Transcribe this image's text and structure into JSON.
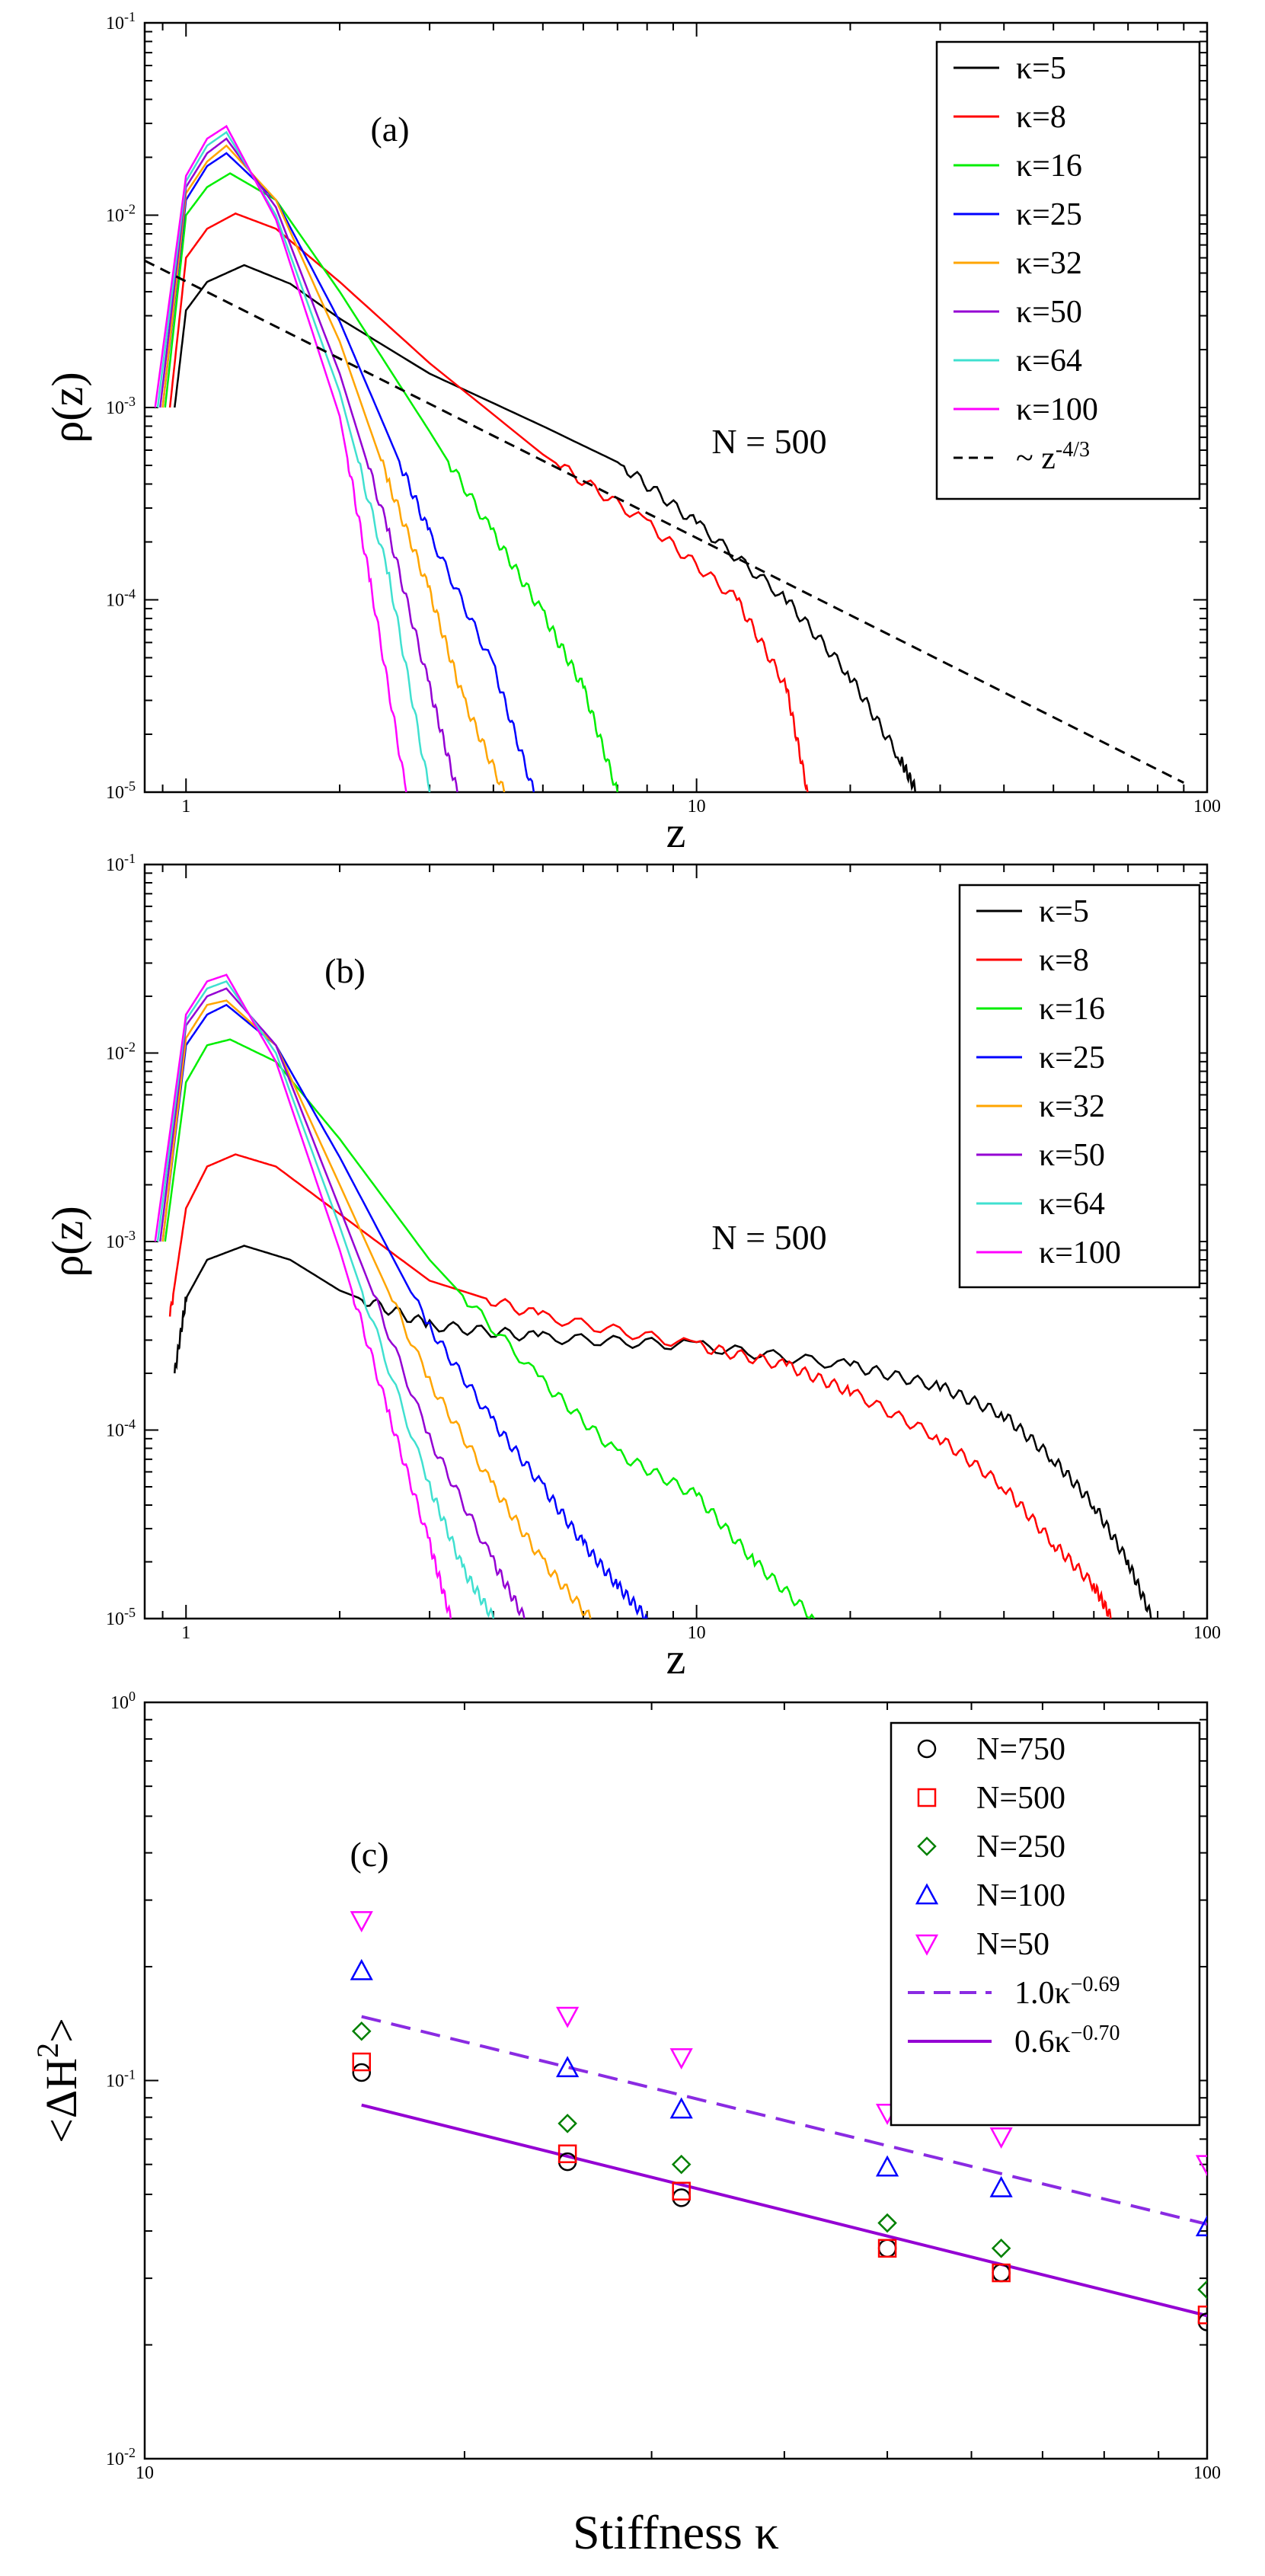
{
  "chart_data": [
    {
      "type": "line",
      "panel": "(a)",
      "xscale": "log",
      "yscale": "log",
      "xlim": [
        0.83,
        100
      ],
      "ylim": [
        1e-05,
        0.1
      ],
      "xlabel": "z",
      "ylabel": "ρ(z)",
      "annotation": "N = 500",
      "xticks": [
        "1",
        "10",
        "100"
      ],
      "yticks": [
        {
          "b": "10",
          "e": "-5"
        },
        {
          "b": "10",
          "e": "-4"
        },
        {
          "b": "10",
          "e": "-3"
        },
        {
          "b": "10",
          "e": "-2"
        },
        {
          "b": "10",
          "e": "-1"
        }
      ],
      "legend_position": "top-right",
      "series": [
        {
          "name": "κ=5",
          "color": "#000000",
          "points": [
            [
              0.95,
              0.001
            ],
            [
              1.0,
              0.0032
            ],
            [
              1.1,
              0.0045
            ],
            [
              1.3,
              0.0055
            ],
            [
              1.6,
              0.0044
            ],
            [
              2,
              0.0029
            ],
            [
              3,
              0.0015
            ],
            [
              5,
              0.0008
            ],
            [
              7,
              0.00052
            ],
            [
              10,
              0.00025
            ],
            [
              15,
              0.0001
            ],
            [
              20,
              4e-05
            ],
            [
              25,
              1.5e-05
            ],
            [
              27,
              1e-05
            ]
          ]
        },
        {
          "name": "κ=8",
          "color": "#ff0000",
          "points": [
            [
              0.93,
              0.001
            ],
            [
              1.0,
              0.006
            ],
            [
              1.1,
              0.0085
            ],
            [
              1.25,
              0.0102
            ],
            [
              1.5,
              0.0085
            ],
            [
              2,
              0.0045
            ],
            [
              3,
              0.0017
            ],
            [
              5,
              0.00057
            ],
            [
              8,
              0.00025
            ],
            [
              12,
              0.0001
            ],
            [
              15,
              3.5e-05
            ],
            [
              16.5,
              1e-05
            ]
          ]
        },
        {
          "name": "κ=16",
          "color": "#00ee00",
          "points": [
            [
              0.91,
              0.001
            ],
            [
              1.0,
              0.01
            ],
            [
              1.1,
              0.014
            ],
            [
              1.22,
              0.0165
            ],
            [
              1.5,
              0.012
            ],
            [
              2,
              0.004
            ],
            [
              3,
              0.00075
            ],
            [
              4,
              0.00022
            ],
            [
              5,
              8.5e-05
            ],
            [
              6,
              3.5e-05
            ],
            [
              7,
              1e-05
            ]
          ]
        },
        {
          "name": "κ=25",
          "color": "#0000ff",
          "points": [
            [
              0.9,
              0.001
            ],
            [
              1.0,
              0.012
            ],
            [
              1.1,
              0.018
            ],
            [
              1.2,
              0.021
            ],
            [
              1.5,
              0.012
            ],
            [
              2,
              0.0028
            ],
            [
              2.5,
              0.0007
            ],
            [
              3,
              0.00022
            ],
            [
              4,
              4.5e-05
            ],
            [
              4.8,
              1e-05
            ]
          ]
        },
        {
          "name": "κ=32",
          "color": "#ffa500",
          "points": [
            [
              0.9,
              0.001
            ],
            [
              1.0,
              0.013
            ],
            [
              1.1,
              0.019
            ],
            [
              1.2,
              0.023
            ],
            [
              1.5,
              0.012
            ],
            [
              2,
              0.0022
            ],
            [
              2.5,
              0.0004
            ],
            [
              3,
              0.00011
            ],
            [
              3.5,
              3e-05
            ],
            [
              4.2,
              1e-05
            ]
          ]
        },
        {
          "name": "κ=50",
          "color": "#9400d3",
          "points": [
            [
              0.89,
              0.001
            ],
            [
              1.0,
              0.014
            ],
            [
              1.1,
              0.021
            ],
            [
              1.2,
              0.025
            ],
            [
              1.5,
              0.011
            ],
            [
              2,
              0.0015
            ],
            [
              2.5,
              0.00022
            ],
            [
              3,
              3.5e-05
            ],
            [
              3.4,
              1e-05
            ]
          ]
        },
        {
          "name": "κ=64",
          "color": "#40e0d0",
          "points": [
            [
              0.88,
              0.001
            ],
            [
              1.0,
              0.015
            ],
            [
              1.1,
              0.023
            ],
            [
              1.2,
              0.027
            ],
            [
              1.5,
              0.01
            ],
            [
              2,
              0.0012
            ],
            [
              2.5,
              0.00013
            ],
            [
              3,
              1e-05
            ]
          ]
        },
        {
          "name": "κ=100",
          "color": "#ff00ff",
          "points": [
            [
              0.87,
              0.001
            ],
            [
              1.0,
              0.016
            ],
            [
              1.1,
              0.025
            ],
            [
              1.2,
              0.029
            ],
            [
              1.5,
              0.0095
            ],
            [
              2,
              0.0009
            ],
            [
              2.3,
              0.00012
            ],
            [
              2.7,
              1e-05
            ]
          ]
        },
        {
          "name": "~ z",
          "name_sup": "-4/3",
          "color": "#000000",
          "dashed": true,
          "points": [
            [
              0.83,
              0.0058
            ],
            [
              90,
              1.12e-05
            ]
          ]
        }
      ]
    },
    {
      "type": "line",
      "panel": "(b)",
      "xscale": "log",
      "yscale": "log",
      "xlim": [
        0.83,
        100
      ],
      "ylim": [
        1e-05,
        0.1
      ],
      "xlabel": "z",
      "ylabel": "ρ(z)",
      "annotation": "N = 500",
      "xticks": [
        "1",
        "10",
        "100"
      ],
      "yticks": [
        {
          "b": "10",
          "e": "-5"
        },
        {
          "b": "10",
          "e": "-4"
        },
        {
          "b": "10",
          "e": "-3"
        },
        {
          "b": "10",
          "e": "-2"
        },
        {
          "b": "10",
          "e": "-1"
        }
      ],
      "legend_position": "top-right",
      "series": [
        {
          "name": "κ=5",
          "color": "#000000",
          "points": [
            [
              0.95,
              0.0002
            ],
            [
              1.0,
              0.0005
            ],
            [
              1.1,
              0.0008
            ],
            [
              1.3,
              0.00095
            ],
            [
              1.6,
              0.0008
            ],
            [
              2,
              0.00055
            ],
            [
              3,
              0.00036
            ],
            [
              5,
              0.00031
            ],
            [
              10,
              0.00028
            ],
            [
              20,
              0.00022
            ],
            [
              30,
              0.00017
            ],
            [
              40,
              0.00012
            ],
            [
              50,
              7e-05
            ],
            [
              60,
              4e-05
            ],
            [
              70,
              2e-05
            ],
            [
              78,
              1e-05
            ]
          ]
        },
        {
          "name": "κ=8",
          "color": "#ff0000",
          "points": [
            [
              0.93,
              0.0004
            ],
            [
              1.0,
              0.0015
            ],
            [
              1.1,
              0.0025
            ],
            [
              1.25,
              0.0029
            ],
            [
              1.5,
              0.0025
            ],
            [
              2,
              0.0014
            ],
            [
              3,
              0.00062
            ],
            [
              5,
              0.0004
            ],
            [
              10,
              0.00028
            ],
            [
              15,
              0.00022
            ],
            [
              20,
              0.00016
            ],
            [
              30,
              9e-05
            ],
            [
              40,
              5e-05
            ],
            [
              50,
              2.5e-05
            ],
            [
              60,
              1.5e-05
            ],
            [
              65,
              1e-05
            ]
          ]
        },
        {
          "name": "κ=16",
          "color": "#00ee00",
          "points": [
            [
              0.91,
              0.001
            ],
            [
              1.0,
              0.007
            ],
            [
              1.1,
              0.011
            ],
            [
              1.22,
              0.0118
            ],
            [
              1.5,
              0.009
            ],
            [
              2,
              0.0035
            ],
            [
              3,
              0.0008
            ],
            [
              5,
              0.00018
            ],
            [
              7,
              7.5e-05
            ],
            [
              10,
              4.5e-05
            ],
            [
              13,
              2e-05
            ],
            [
              17,
              1e-05
            ]
          ]
        },
        {
          "name": "κ=25",
          "color": "#0000ff",
          "points": [
            [
              0.9,
              0.001
            ],
            [
              1.0,
              0.011
            ],
            [
              1.1,
              0.016
            ],
            [
              1.2,
              0.018
            ],
            [
              1.5,
              0.011
            ],
            [
              2,
              0.0028
            ],
            [
              3,
              0.00035
            ],
            [
              4,
              0.00011
            ],
            [
              5,
              5e-05
            ],
            [
              6,
              2.5e-05
            ],
            [
              7,
              1.5e-05
            ],
            [
              8,
              1e-05
            ]
          ]
        },
        {
          "name": "κ=32",
          "color": "#ffa500",
          "points": [
            [
              0.9,
              0.001
            ],
            [
              1.0,
              0.012
            ],
            [
              1.1,
              0.018
            ],
            [
              1.2,
              0.019
            ],
            [
              1.5,
              0.011
            ],
            [
              2,
              0.002
            ],
            [
              3,
              0.00018
            ],
            [
              4,
              5e-05
            ],
            [
              5,
              2e-05
            ],
            [
              6.2,
              1e-05
            ]
          ]
        },
        {
          "name": "κ=50",
          "color": "#9400d3",
          "points": [
            [
              0.89,
              0.001
            ],
            [
              1.0,
              0.014
            ],
            [
              1.1,
              0.02
            ],
            [
              1.2,
              0.022
            ],
            [
              1.5,
              0.011
            ],
            [
              2,
              0.0015
            ],
            [
              3,
              9e-05
            ],
            [
              4,
              2e-05
            ],
            [
              4.6,
              1e-05
            ]
          ]
        },
        {
          "name": "κ=64",
          "color": "#40e0d0",
          "points": [
            [
              0.88,
              0.001
            ],
            [
              1.0,
              0.015
            ],
            [
              1.1,
              0.022
            ],
            [
              1.2,
              0.024
            ],
            [
              1.5,
              0.01
            ],
            [
              2,
              0.0012
            ],
            [
              3,
              5e-05
            ],
            [
              3.5,
              1.8e-05
            ],
            [
              4,
              1e-05
            ]
          ]
        },
        {
          "name": "κ=100",
          "color": "#ff00ff",
          "points": [
            [
              0.87,
              0.001
            ],
            [
              1.0,
              0.016
            ],
            [
              1.1,
              0.024
            ],
            [
              1.2,
              0.026
            ],
            [
              1.5,
              0.009
            ],
            [
              2,
              0.0009
            ],
            [
              2.5,
              0.00012
            ],
            [
              3,
              2.5e-05
            ],
            [
              3.3,
              1e-05
            ]
          ]
        }
      ]
    },
    {
      "type": "scatter",
      "panel": "(c)",
      "xscale": "log",
      "yscale": "log",
      "xlim": [
        10,
        100
      ],
      "ylim": [
        0.01,
        1
      ],
      "xlabel": "Stiffness κ",
      "ylabel": "<ΔH",
      "ylabel_sup": "2",
      "ylabel_end": ">",
      "xticks": [
        "10",
        "100"
      ],
      "yticks": [
        {
          "b": "10",
          "e": "-2"
        },
        {
          "b": "10",
          "e": "-1"
        },
        {
          "b": "10",
          "e": "0"
        }
      ],
      "legend_position": "top-right",
      "x": [
        16,
        25,
        32,
        50,
        64,
        100
      ],
      "series": [
        {
          "name": "N=750",
          "marker": "circle",
          "color": "#000000",
          "values": [
            0.105,
            0.061,
            0.049,
            0.036,
            0.031,
            0.023
          ]
        },
        {
          "name": "N=500",
          "marker": "square",
          "color": "#ff0000",
          "values": [
            0.112,
            0.064,
            0.051,
            0.036,
            0.031,
            0.024
          ]
        },
        {
          "name": "N=250",
          "marker": "diamond",
          "color": "#008000",
          "values": [
            0.135,
            0.077,
            0.06,
            0.042,
            0.036,
            0.028
          ]
        },
        {
          "name": "N=100",
          "marker": "triangle-up",
          "color": "#0000ff",
          "values": [
            0.195,
            0.108,
            0.084,
            0.059,
            0.052,
            0.041
          ]
        },
        {
          "name": "N=50",
          "marker": "triangle-down",
          "color": "#ff00ff",
          "values": [
            0.265,
            0.148,
            0.115,
            0.082,
            0.071,
            0.06
          ]
        }
      ],
      "fits": [
        {
          "name": "1.0κ",
          "name_sup": "−0.69",
          "color": "#8a2be2",
          "dashed": true,
          "coef": 1.0,
          "exp": -0.69,
          "xrange": [
            16,
            100
          ]
        },
        {
          "name": "0.6κ",
          "name_sup": "−0.70",
          "color": "#9400d3",
          "dashed": false,
          "coef": 0.6,
          "exp": -0.7,
          "xrange": [
            16,
            100
          ]
        }
      ],
      "annotation": "(c)"
    }
  ]
}
